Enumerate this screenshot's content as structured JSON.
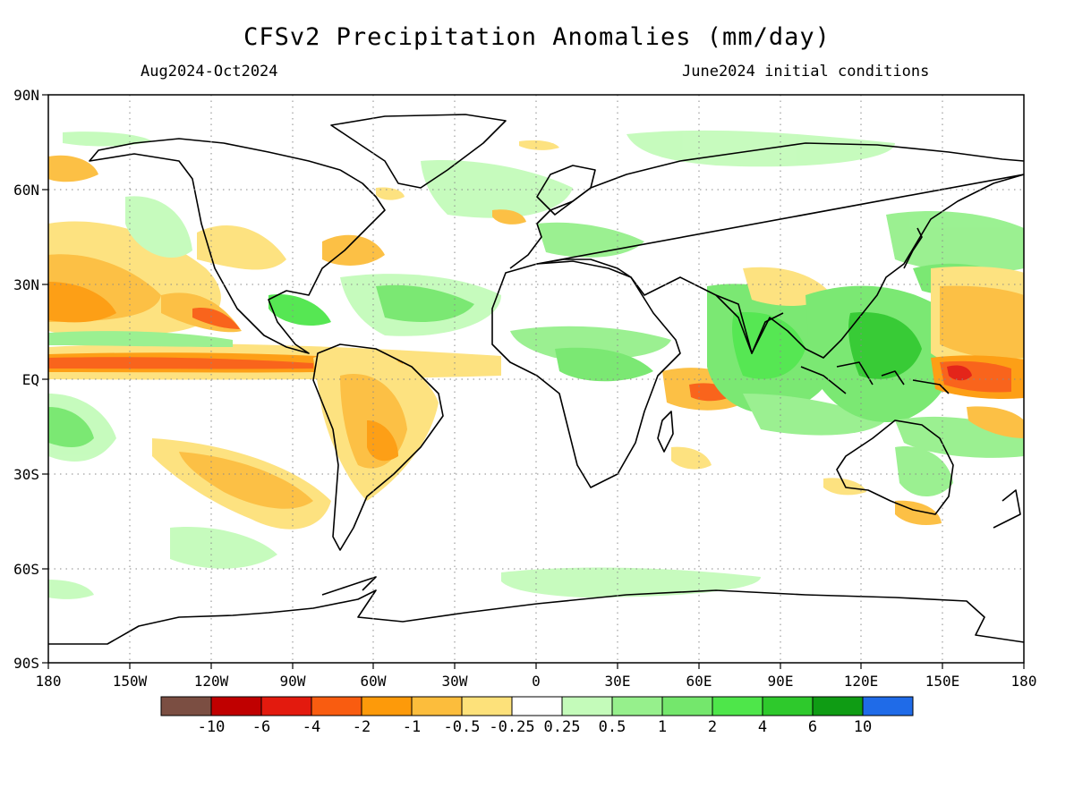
{
  "title": "CFSv2 Precipitation Anomalies (mm/day)",
  "subtitle_left": "Aug2024-Oct2024",
  "subtitle_right": "June2024 initial conditions",
  "lat_labels": [
    "90N",
    "60N",
    "30N",
    "EQ",
    "30S",
    "60S",
    "90S"
  ],
  "lon_labels": [
    "180",
    "150W",
    "120W",
    "90W",
    "60W",
    "30W",
    "0",
    "30E",
    "60E",
    "90E",
    "120E",
    "150E",
    "180"
  ],
  "colorbar": {
    "colors": [
      "#7b4e42",
      "#c00000",
      "#e31a0e",
      "#f95c10",
      "#fd9a0a",
      "#fcbd3c",
      "#fde17a",
      "#ffffff",
      "#c4fbba",
      "#96f08c",
      "#74e76c",
      "#4ee64a",
      "#2ec92c",
      "#0f9c14",
      "#1f6be8"
    ],
    "labels": [
      "-10",
      "-6",
      "-4",
      "-2",
      "-1",
      "-0.5",
      "-0.25",
      "0.25",
      "0.5",
      "1",
      "2",
      "4",
      "6",
      "10"
    ]
  },
  "map_layer_colors": {
    "dry_light": "#fde17a",
    "dry_medium": "#fcbd3c",
    "dry_strong": "#fd9a0a",
    "dry_very_strong": "#f95c10",
    "dry_extreme": "#e31a0e",
    "wet_light": "#c4fbba",
    "wet_medium": "#96f08c",
    "wet_strong": "#74e76c",
    "wet_very_strong": "#4ee64a",
    "wet_extreme": "#2ec92c"
  }
}
